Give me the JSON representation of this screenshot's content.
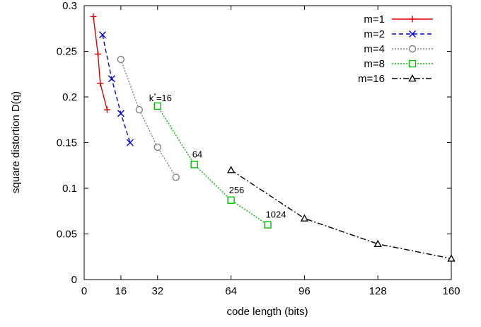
{
  "chart_data": {
    "type": "line",
    "xlabel": "code length (bits)",
    "ylabel": "square distortion D(q)",
    "xlim": [
      0,
      160
    ],
    "ylim": [
      0,
      0.3
    ],
    "xticks": [
      0,
      16,
      32,
      64,
      96,
      128,
      160
    ],
    "yticks": [
      0,
      0.05,
      0.1,
      0.15,
      0.2,
      0.25,
      0.3
    ],
    "xtick_labels": [
      "0",
      "16",
      "32",
      "64",
      "96",
      "128",
      "160"
    ],
    "ytick_labels": [
      "0",
      "0.05",
      "0.1",
      "0.15",
      "0.2",
      "0.25",
      "0.3"
    ],
    "grid": false,
    "legend_position": "top-right",
    "series": [
      {
        "name": "m=1",
        "color": "#e00000",
        "dash": "solid",
        "marker": "plus",
        "x": [
          4,
          6,
          7,
          10
        ],
        "y": [
          0.288,
          0.247,
          0.215,
          0.186
        ]
      },
      {
        "name": "m=2",
        "color": "#0000e0",
        "dash": "dashed",
        "marker": "cross",
        "x": [
          8,
          12,
          16,
          20
        ],
        "y": [
          0.268,
          0.22,
          0.182,
          0.15
        ]
      },
      {
        "name": "m=4",
        "color": "#808080",
        "dash": "dotted",
        "marker": "circle",
        "x": [
          16,
          24,
          32,
          40
        ],
        "y": [
          0.241,
          0.186,
          0.145,
          0.112
        ]
      },
      {
        "name": "m=8",
        "color": "#00c000",
        "dash": "dotted",
        "marker": "square",
        "x": [
          32,
          48,
          64,
          80
        ],
        "y": [
          0.19,
          0.126,
          0.087,
          0.06
        ]
      },
      {
        "name": "m=16",
        "color": "#000000",
        "dash": "dashdot",
        "marker": "triangle",
        "x": [
          64,
          96,
          128,
          160
        ],
        "y": [
          0.12,
          0.067,
          0.039,
          0.023
        ]
      }
    ],
    "annotations": [
      {
        "text": "k*=16",
        "base": "k",
        "sup": "*",
        "rest": "=16",
        "x": 32,
        "y": 0.19
      },
      {
        "text": "64",
        "x": 48,
        "y": 0.126
      },
      {
        "text": "256",
        "x": 64,
        "y": 0.087
      },
      {
        "text": "1024",
        "x": 80,
        "y": 0.06
      }
    ]
  }
}
